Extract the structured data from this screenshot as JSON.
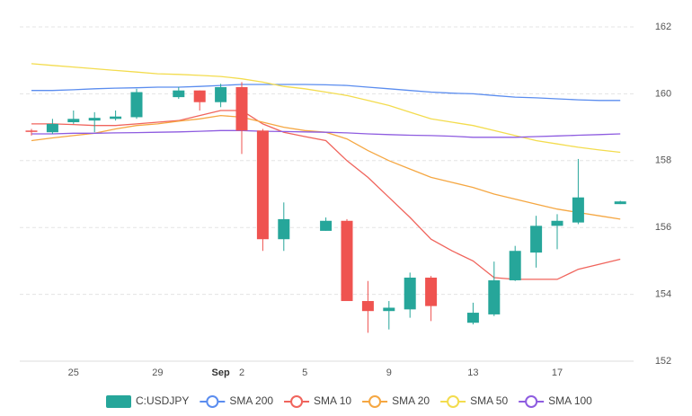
{
  "chart_data": {
    "type": "candlestick",
    "categories": [
      null,
      null,
      "25",
      null,
      null,
      null,
      "29",
      null,
      null,
      "Sep",
      "2",
      null,
      null,
      "5",
      null,
      null,
      null,
      "9",
      null,
      null,
      null,
      "13",
      null,
      null,
      null,
      "17",
      null,
      null,
      null
    ],
    "ylim": [
      152,
      162
    ],
    "yticks": [
      152,
      154,
      156,
      158,
      160,
      162
    ],
    "grid": true,
    "series": [
      {
        "name": "C:USDJPY",
        "type": "candlestick",
        "color": "#26a69a",
        "up_color": "#26a69a",
        "down_color": "#ef5350",
        "open": [
          158.9,
          158.85,
          159.15,
          159.2,
          159.25,
          159.3,
          null,
          159.9,
          160.1,
          159.75,
          160.2,
          158.9,
          155.65,
          null,
          155.9,
          156.2,
          153.8,
          153.5,
          153.55,
          154.5,
          null,
          153.15,
          153.4,
          154.42,
          155.25,
          156.05,
          156.15,
          null,
          156.7
        ],
        "high": [
          158.95,
          159.25,
          159.5,
          159.45,
          159.5,
          160.15,
          null,
          160.2,
          160.1,
          160.3,
          160.35,
          158.95,
          156.75,
          null,
          156.3,
          156.25,
          154.4,
          153.8,
          154.65,
          154.55,
          null,
          153.75,
          154.98,
          155.45,
          156.35,
          156.4,
          158.05,
          null,
          156.8
        ],
        "low": [
          158.75,
          158.8,
          159.1,
          158.85,
          159.2,
          159.25,
          null,
          159.85,
          159.5,
          159.6,
          158.2,
          155.3,
          155.3,
          null,
          155.9,
          153.8,
          152.85,
          152.95,
          153.3,
          153.2,
          null,
          153.1,
          153.35,
          154.4,
          154.8,
          155.35,
          156.1,
          null,
          156.7
        ],
        "close": [
          158.88,
          159.1,
          159.25,
          159.28,
          159.32,
          160.05,
          null,
          160.1,
          159.75,
          160.2,
          158.9,
          155.65,
          156.25,
          null,
          156.2,
          153.8,
          153.5,
          153.6,
          154.5,
          153.65,
          null,
          153.45,
          154.42,
          155.3,
          156.05,
          156.2,
          156.9,
          null,
          156.78
        ]
      },
      {
        "name": "SMA 200",
        "type": "line",
        "color": "#5b8def",
        "values": [
          160.1,
          160.1,
          160.12,
          160.15,
          160.17,
          160.18,
          160.2,
          160.2,
          160.22,
          160.25,
          160.28,
          160.28,
          160.28,
          160.28,
          160.27,
          160.25,
          160.2,
          160.15,
          160.1,
          160.05,
          160.02,
          160.0,
          159.95,
          159.9,
          159.88,
          159.85,
          159.82,
          159.8,
          159.8
        ]
      },
      {
        "name": "SMA 10",
        "type": "line",
        "color": "#f0645c",
        "values": [
          159.1,
          159.1,
          159.08,
          159.05,
          159.05,
          159.1,
          159.15,
          159.2,
          159.35,
          159.5,
          159.5,
          159.1,
          158.85,
          158.72,
          158.6,
          158.0,
          157.5,
          156.9,
          156.3,
          155.65,
          155.3,
          155.0,
          154.5,
          154.45,
          154.45,
          154.45,
          154.75,
          154.9,
          155.05
        ]
      },
      {
        "name": "SMA 20",
        "type": "line",
        "color": "#f5a742",
        "values": [
          158.6,
          158.68,
          158.75,
          158.82,
          158.95,
          159.05,
          159.1,
          159.18,
          159.25,
          159.35,
          159.3,
          159.15,
          159.0,
          158.9,
          158.85,
          158.65,
          158.3,
          158.0,
          157.75,
          157.5,
          157.35,
          157.2,
          157.0,
          156.85,
          156.7,
          156.55,
          156.45,
          156.35,
          156.25
        ]
      },
      {
        "name": "SMA 50",
        "type": "line",
        "color": "#f3dc4e",
        "values": [
          160.9,
          160.85,
          160.8,
          160.75,
          160.7,
          160.65,
          160.6,
          160.58,
          160.55,
          160.52,
          160.45,
          160.35,
          160.22,
          160.15,
          160.05,
          159.95,
          159.8,
          159.65,
          159.45,
          159.25,
          159.15,
          159.05,
          158.9,
          158.75,
          158.6,
          158.5,
          158.4,
          158.32,
          158.25
        ]
      },
      {
        "name": "SMA 100",
        "type": "line",
        "color": "#8e5ce0",
        "values": [
          158.8,
          158.8,
          158.82,
          158.82,
          158.83,
          158.84,
          158.85,
          158.86,
          158.88,
          158.9,
          158.9,
          158.88,
          158.87,
          158.86,
          158.85,
          158.83,
          158.8,
          158.78,
          158.76,
          158.75,
          158.73,
          158.7,
          158.7,
          158.7,
          158.72,
          158.74,
          158.76,
          158.78,
          158.8
        ]
      }
    ]
  }
}
